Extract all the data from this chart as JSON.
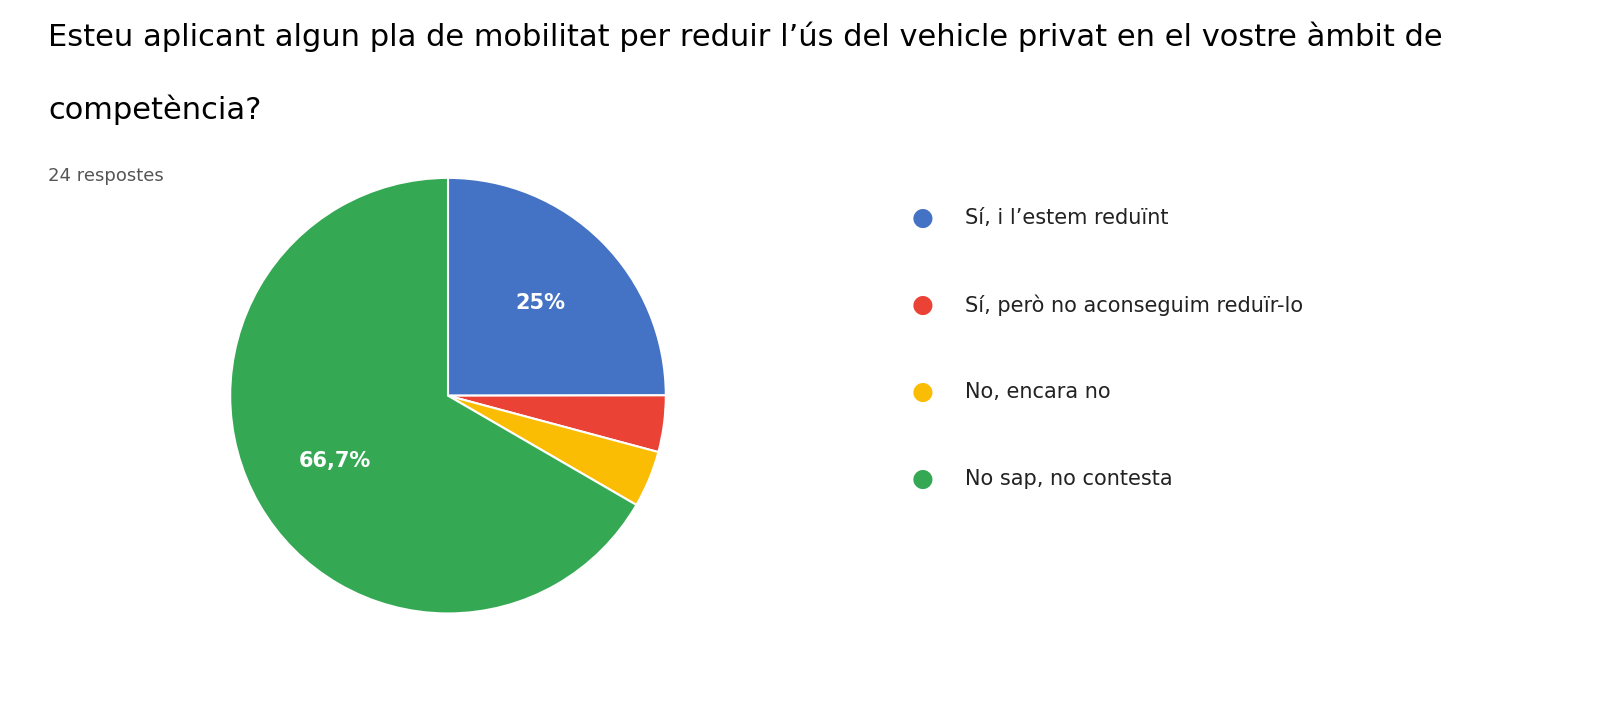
{
  "title": "Esteu aplicant algun pla de mobilitat per reduir l’ús del vehicle privat en el vostre àmbit de competència?",
  "subtitle": "24 respostes",
  "labels": [
    "Sí, i l’estem reduïnt",
    "Sí, però no aconseguim reduïr-lo",
    "No, encara no",
    "No sap, no contesta"
  ],
  "values": [
    25.0,
    4.2,
    4.2,
    66.7
  ],
  "colors": [
    "#4472C4",
    "#EA4335",
    "#FBBC04",
    "#34A853"
  ],
  "show_pct": {
    "0": "25%",
    "3": "66,7%"
  },
  "background_color": "#ffffff",
  "title_fontsize": 22,
  "subtitle_fontsize": 13,
  "legend_fontsize": 15
}
